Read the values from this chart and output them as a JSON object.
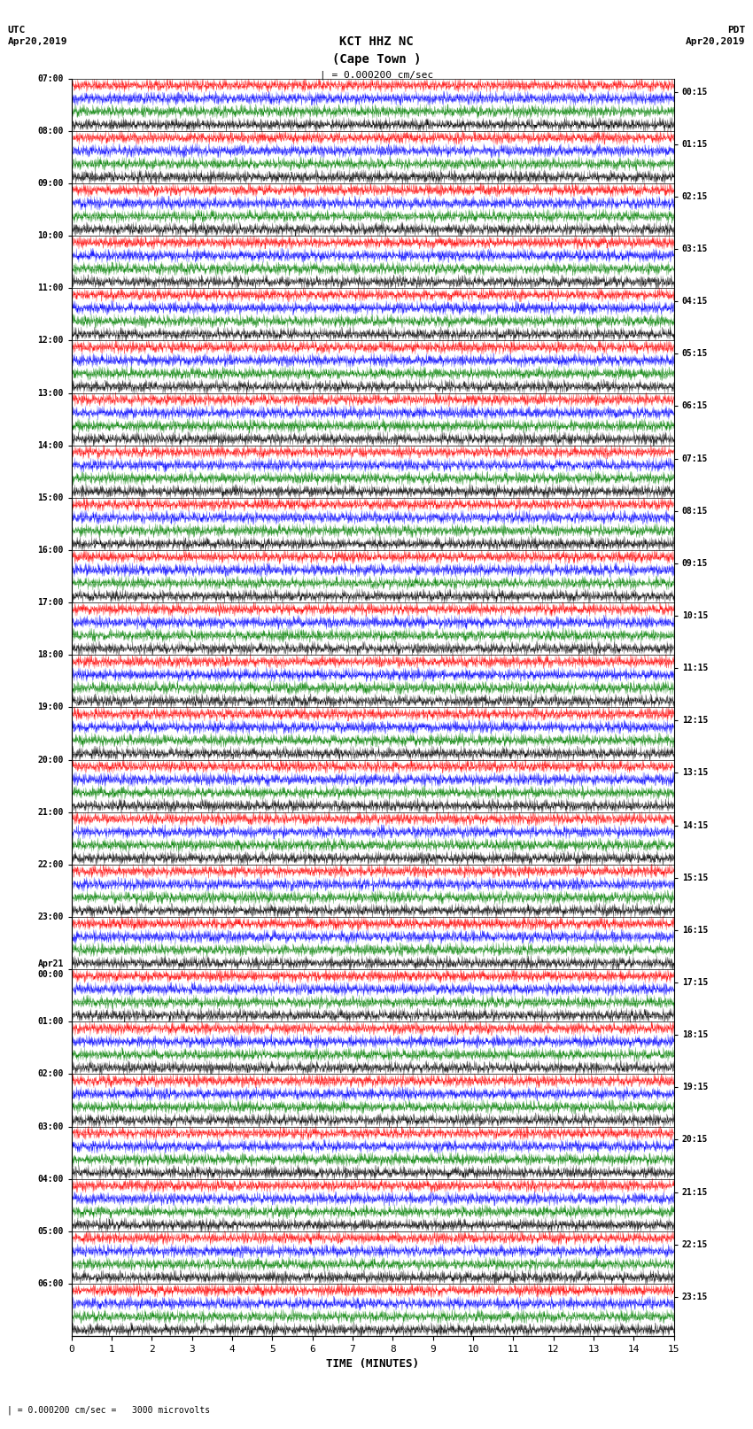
{
  "title_line1": "KCT HHZ NC",
  "title_line2": "(Cape Town )",
  "scale_label": "| = 0.000200 cm/sec",
  "bottom_label": "| = 0.000200 cm/sec =   3000 microvolts",
  "utc_label": "UTC\nApr20,2019",
  "pdt_label": "PDT\nApr20,2019",
  "xlabel": "TIME (MINUTES)",
  "left_times_utc": [
    "07:00",
    "08:00",
    "09:00",
    "10:00",
    "11:00",
    "12:00",
    "13:00",
    "14:00",
    "15:00",
    "16:00",
    "17:00",
    "18:00",
    "19:00",
    "20:00",
    "21:00",
    "22:00",
    "23:00",
    "Apr21\n00:00",
    "01:00",
    "02:00",
    "03:00",
    "04:00",
    "05:00",
    "06:00"
  ],
  "right_times_pdt": [
    "00:15",
    "01:15",
    "02:15",
    "03:15",
    "04:15",
    "05:15",
    "06:15",
    "07:15",
    "08:15",
    "09:15",
    "10:15",
    "11:15",
    "12:15",
    "13:15",
    "14:15",
    "15:15",
    "16:15",
    "17:15",
    "18:15",
    "19:15",
    "20:15",
    "21:15",
    "22:15",
    "23:15"
  ],
  "n_rows": 24,
  "n_minutes": 15,
  "colors_cycle": [
    "red",
    "blue",
    "green",
    "black"
  ],
  "bg_color": "white",
  "fig_width": 8.5,
  "fig_height": 16.13,
  "dpi": 100,
  "noise_seed": 42
}
